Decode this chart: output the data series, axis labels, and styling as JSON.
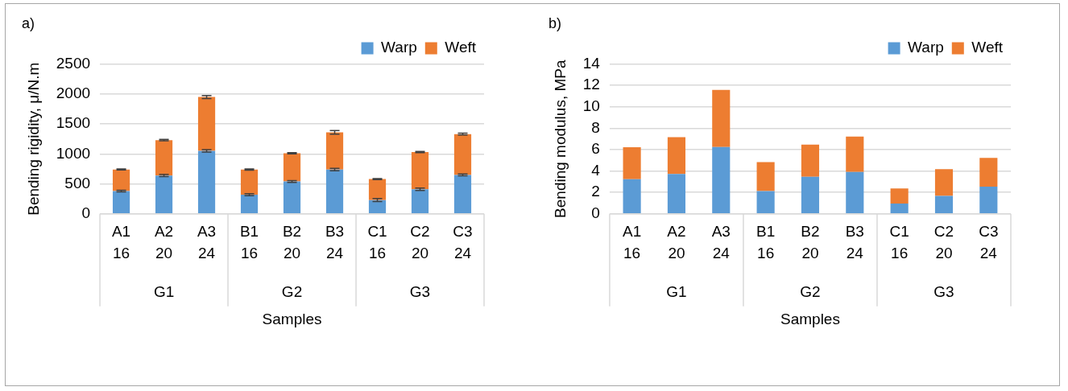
{
  "chart_data": [
    {
      "type": "bar",
      "title": "a)",
      "xlabel": "Samples",
      "ylabel": "Bending rigidity, μ/N.m",
      "stacked": true,
      "legend": "top right",
      "grid": "y",
      "categories": [
        "A1\n16",
        "A2\n20",
        "A3\n24",
        "B1\n16",
        "B2\n20",
        "B3\n24",
        "C1\n16",
        "C2\n20",
        "C3\n24"
      ],
      "annotations": [
        "G1",
        "G2",
        "G3"
      ],
      "ylim": [
        0,
        2500
      ],
      "yticks": [
        0,
        500,
        1000,
        1500,
        2000,
        2500
      ],
      "series": [
        {
          "name": "Warp",
          "color": "#5b9bd5",
          "values": [
            380,
            640,
            1050,
            320,
            540,
            740,
            230,
            410,
            650
          ],
          "errors": [
            15,
            20,
            20,
            18,
            15,
            20,
            25,
            20,
            15
          ]
        },
        {
          "name": "Weft",
          "color": "#ed7d31",
          "values": [
            360,
            590,
            900,
            420,
            470,
            620,
            350,
            620,
            680
          ],
          "errors": [
            8,
            12,
            25,
            10,
            10,
            30,
            8,
            10,
            15
          ]
        }
      ]
    },
    {
      "type": "bar",
      "title": "b)",
      "xlabel": "Samples",
      "ylabel": "Bending modulus, MPa",
      "stacked": true,
      "legend": "top right",
      "grid": "y",
      "categories": [
        "A1\n16",
        "A2\n20",
        "A3\n24",
        "B1\n16",
        "B2\n20",
        "B3\n24",
        "C1\n16",
        "C2\n20",
        "C3\n24"
      ],
      "annotations": [
        "G1",
        "G2",
        "G3"
      ],
      "ylim": [
        0,
        14
      ],
      "yticks": [
        0,
        2,
        4,
        6,
        8,
        10,
        12,
        14
      ],
      "series": [
        {
          "name": "Warp",
          "color": "#5b9bd5",
          "values": [
            3.24,
            3.73,
            6.25,
            2.12,
            3.46,
            3.92,
            0.97,
            1.67,
            2.54
          ]
        },
        {
          "name": "Weft",
          "color": "#ed7d31",
          "values": [
            2.99,
            3.44,
            5.34,
            2.71,
            3.01,
            3.3,
            1.4,
            2.5,
            2.68
          ]
        }
      ]
    }
  ]
}
